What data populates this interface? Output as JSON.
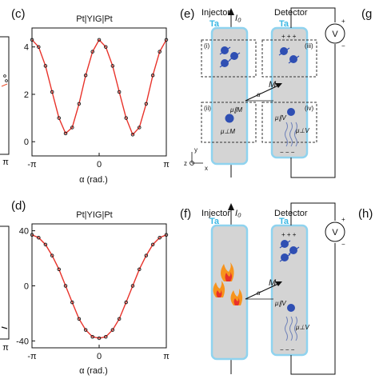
{
  "panels": {
    "c": {
      "label": "(c)",
      "title": "Pt|YIG|Pt",
      "xlabel": "α (rad.)"
    },
    "d": {
      "label": "(d)",
      "title": "Pt|YIG|Pt",
      "xlabel": "α (rad.)"
    },
    "e": {
      "label": "(e)",
      "injector": "Injector",
      "detector": "Detector",
      "current": "I₀",
      "ta_left": "Ta",
      "ta_right": "Ta",
      "voltmeter": "V",
      "plus": "+",
      "minus": "−",
      "magnetization": "M",
      "angle": "α",
      "region_labels": [
        "(i)",
        "(ii)",
        "(iii)",
        "(iv)"
      ],
      "mu_labels": [
        "μ∥M",
        "μ⊥M",
        "μ∥V",
        "μ⊥V"
      ],
      "axes": {
        "y": "y",
        "z": "z",
        "x": "x"
      },
      "charges_top": "+ + +",
      "charges_bottom": "− − −"
    },
    "f": {
      "label": "(f)",
      "injector": "Injector",
      "detector": "Detector",
      "current": "I₀",
      "ta_left": "Ta",
      "ta_right": "Ta",
      "voltmeter": "V",
      "plus": "+",
      "minus": "−",
      "magnetization": "M",
      "angle": "α",
      "mu_labels": [
        "μ∥V",
        "μ⊥V"
      ],
      "charges_top": "+ + +",
      "charges_bottom": "− − −"
    },
    "g": {
      "label": "(g"
    },
    "h": {
      "label": "(h)"
    },
    "left_partial": {
      "tick_top": "π",
      "tick_bottom": "π"
    }
  },
  "chart_data": [
    {
      "panel": "c",
      "type": "line",
      "title": "Pt|YIG|Pt",
      "xlabel": "α (rad.)",
      "ylabel": "",
      "xticks": [
        "-π",
        "0",
        "π"
      ],
      "yticks": [
        "0",
        "2",
        "4"
      ],
      "xlim": [
        -3.1416,
        3.1416
      ],
      "ylim": [
        -0.6,
        4.8
      ],
      "series": [
        {
          "x": [
            -3.14,
            -2.83,
            -2.51,
            -2.2,
            -1.88,
            -1.57,
            -1.26,
            -0.94,
            -0.63,
            -0.31,
            0.0,
            0.31,
            0.63,
            0.94,
            1.26,
            1.57,
            1.88,
            2.2,
            2.51,
            2.83,
            3.14
          ],
          "y": [
            4.3,
            4.0,
            3.2,
            2.1,
            1.0,
            0.35,
            0.6,
            1.6,
            2.8,
            3.8,
            4.3,
            4.0,
            3.2,
            2.1,
            1.0,
            0.3,
            0.6,
            1.6,
            2.8,
            3.8,
            4.3
          ]
        }
      ]
    },
    {
      "panel": "d",
      "type": "line",
      "title": "Pt|YIG|Pt",
      "xlabel": "α (rad.)",
      "ylabel": "",
      "xticks": [
        "-π",
        "0",
        "π"
      ],
      "yticks": [
        "-40",
        "0",
        "40"
      ],
      "xlim": [
        -3.1416,
        3.1416
      ],
      "ylim": [
        -45,
        45
      ],
      "series": [
        {
          "x": [
            -3.14,
            -2.83,
            -2.51,
            -2.2,
            -1.88,
            -1.57,
            -1.26,
            -0.94,
            -0.63,
            -0.31,
            0.0,
            0.31,
            0.63,
            0.94,
            1.26,
            1.57,
            1.88,
            2.2,
            2.51,
            2.83,
            3.14
          ],
          "y": [
            37,
            35,
            30,
            22,
            12,
            0,
            -12,
            -24,
            -32,
            -37,
            -38,
            -37,
            -32,
            -24,
            -12,
            0,
            12,
            22,
            30,
            35,
            37
          ]
        }
      ]
    }
  ]
}
